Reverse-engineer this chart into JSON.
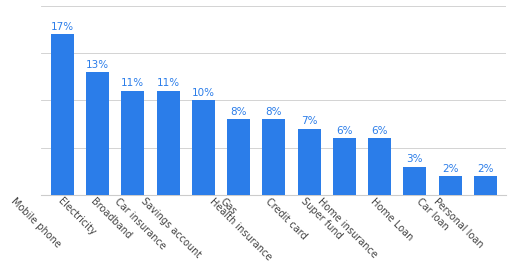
{
  "categories": [
    "Mobile phone",
    "Electricity",
    "Broadband",
    "Car insurance",
    "Savings account",
    "Gas",
    "Health insurance",
    "Credit card",
    "Super fund",
    "Home insurance",
    "Home Loan",
    "Car loan",
    "Personal loan"
  ],
  "values": [
    17,
    13,
    11,
    11,
    10,
    8,
    8,
    7,
    6,
    6,
    3,
    2,
    2
  ],
  "bar_color": "#2b7de9",
  "label_color": "#2b7de9",
  "background_color": "#ffffff",
  "grid_color": "#cccccc",
  "xlabel_rotation": -45,
  "label_fontsize": 7.5,
  "tick_fontsize": 7,
  "ylim": [
    0,
    20
  ],
  "yticks": [
    0,
    5,
    10,
    15,
    20
  ]
}
